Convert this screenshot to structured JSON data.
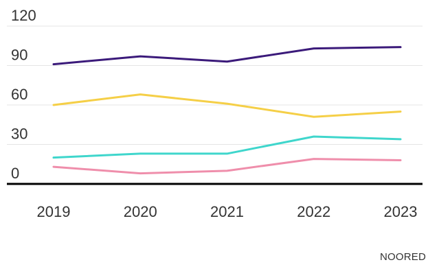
{
  "chart_data": {
    "type": "line",
    "title": "",
    "xlabel": "",
    "ylabel": "",
    "x": [
      "2019",
      "2020",
      "2021",
      "2022",
      "2023"
    ],
    "y_ticks": [
      0,
      30,
      60,
      90,
      120
    ],
    "ylim": [
      0,
      120
    ],
    "grid": true,
    "legend": "none",
    "series": [
      {
        "color": "#3b1a7a",
        "values": [
          91,
          97,
          93,
          103,
          104
        ]
      },
      {
        "color": "#f5cf47",
        "values": [
          60,
          68,
          61,
          51,
          55
        ]
      },
      {
        "color": "#3fd6cc",
        "values": [
          20,
          23,
          23,
          36,
          34
        ]
      },
      {
        "color": "#ef8eab",
        "values": [
          13,
          8,
          10,
          19,
          18
        ]
      }
    ]
  },
  "source": "NOORED"
}
